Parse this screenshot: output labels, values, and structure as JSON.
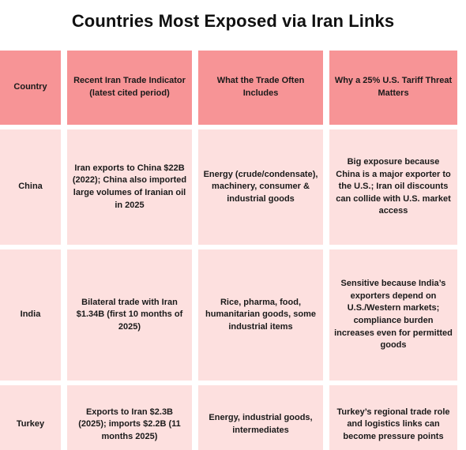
{
  "title": "Countries Most Exposed via Iran Links",
  "table": {
    "headers": [
      "Country",
      "Recent Iran Trade Indicator (latest cited period)",
      "What the Trade Often Includes",
      "Why a 25% U.S. Tariff Threat Matters"
    ],
    "rows": [
      {
        "country": "China",
        "indicator": "Iran exports to China $22B (2022); China also imported large volumes of Iranian oil in 2025",
        "includes": "Energy (crude/condensate), machinery, consumer & industrial goods",
        "why": "Big exposure because China is a major exporter to the U.S.; Iran oil discounts can collide with U.S. market access"
      },
      {
        "country": "India",
        "indicator": "Bilateral trade with Iran $1.34B (first 10 months of 2025)",
        "includes": "Rice, pharma, food, humanitarian goods, some industrial items",
        "why": "Sensitive because India’s exporters depend on U.S./Western markets; compliance burden increases even for permitted goods"
      },
      {
        "country": "Turkey",
        "indicator": "Exports to Iran $2.3B (2025); imports $2.2B (11 months 2025)",
        "includes": "Energy, industrial goods, intermediates",
        "why": "Turkey’s regional trade role and logistics links can become pressure points"
      }
    ]
  },
  "colors": {
    "header_bg": "#f79496",
    "body_bg": "#fde0df"
  }
}
